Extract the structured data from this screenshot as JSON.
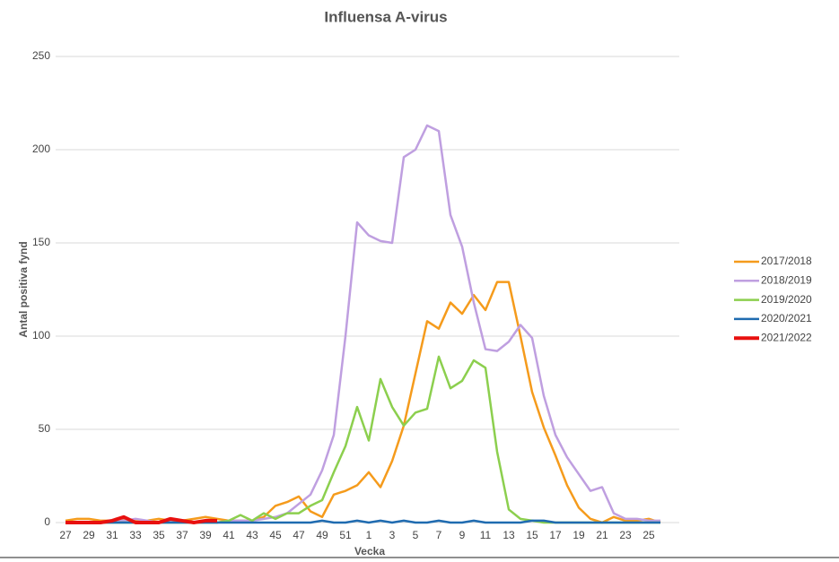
{
  "chart_data": {
    "type": "line",
    "title": "Influensa A-virus",
    "xlabel": "Vecka",
    "ylabel": "Antal positiva fynd",
    "categories": [
      "27",
      null,
      "29",
      null,
      "31",
      null,
      "33",
      null,
      "35",
      null,
      "37",
      null,
      "39",
      null,
      "41",
      null,
      "43",
      null,
      "45",
      null,
      "47",
      null,
      "49",
      null,
      "51",
      null,
      "1",
      null,
      "3",
      null,
      "5",
      null,
      "7",
      null,
      "9",
      null,
      "11",
      null,
      "13",
      null,
      "15",
      null,
      "17",
      null,
      "19",
      null,
      "21",
      null,
      "23",
      null,
      "25",
      null
    ],
    "series": [
      {
        "name": "2017/2018",
        "color": "#f59b1c",
        "width": 2.5,
        "values": [
          1,
          2,
          2,
          1,
          1,
          2,
          1,
          1,
          2,
          1,
          1,
          2,
          3,
          2,
          1,
          1,
          1,
          3,
          9,
          11,
          14,
          6,
          3,
          15,
          17,
          20,
          27,
          19,
          33,
          52,
          80,
          108,
          104,
          118,
          112,
          122,
          114,
          129,
          129,
          100,
          70,
          51,
          36,
          20,
          8,
          2,
          0,
          3,
          1,
          1,
          2,
          0
        ]
      },
      {
        "name": "2018/2019",
        "color": "#bf9fe0",
        "width": 2.5,
        "values": [
          0,
          0,
          0,
          0,
          1,
          1,
          2,
          1,
          0,
          1,
          1,
          0,
          1,
          0,
          1,
          1,
          1,
          2,
          3,
          5,
          10,
          15,
          28,
          47,
          100,
          161,
          154,
          151,
          150,
          196,
          200,
          213,
          210,
          165,
          148,
          118,
          93,
          92,
          97,
          106,
          99,
          68,
          47,
          35,
          26,
          17,
          19,
          5,
          2,
          2,
          1,
          1
        ]
      },
      {
        "name": "2019/2020",
        "color": "#8ccf4e",
        "width": 2.5,
        "values": [
          0,
          0,
          0,
          0,
          0,
          0,
          0,
          0,
          0,
          0,
          0,
          0,
          0,
          0,
          1,
          4,
          1,
          5,
          2,
          5,
          5,
          9,
          12,
          27,
          41,
          62,
          44,
          77,
          62,
          52,
          59,
          61,
          89,
          72,
          76,
          87,
          83,
          38,
          7,
          2,
          1,
          0,
          0,
          0,
          0,
          0,
          0,
          0,
          0,
          0,
          0,
          0
        ]
      },
      {
        "name": "2020/2021",
        "color": "#1f6bb0",
        "width": 2.5,
        "values": [
          0,
          0,
          0,
          0,
          0,
          0,
          0,
          0,
          0,
          0,
          0,
          0,
          0,
          0,
          0,
          0,
          0,
          0,
          0,
          0,
          0,
          0,
          1,
          0,
          0,
          1,
          0,
          1,
          0,
          1,
          0,
          0,
          1,
          0,
          0,
          1,
          0,
          0,
          0,
          0,
          1,
          1,
          0,
          0,
          0,
          0,
          0,
          0,
          0,
          0,
          0,
          0
        ]
      },
      {
        "name": "2021/2022",
        "color": "#e8100f",
        "width": 4,
        "values": [
          0,
          0,
          0,
          0,
          1,
          3,
          0,
          0,
          0,
          2,
          1,
          0,
          1,
          1,
          null,
          null,
          null,
          null,
          null,
          null,
          null,
          null,
          null,
          null,
          null,
          null,
          null,
          null,
          null,
          null,
          null,
          null,
          null,
          null,
          null,
          null,
          null,
          null,
          null,
          null,
          null,
          null,
          null,
          null,
          null,
          null,
          null,
          null,
          null,
          null,
          null,
          null
        ]
      }
    ],
    "ylim": [
      0,
      250
    ],
    "yticks": [
      0,
      50,
      100,
      150,
      200,
      250
    ],
    "grid": true,
    "legend": "right"
  }
}
